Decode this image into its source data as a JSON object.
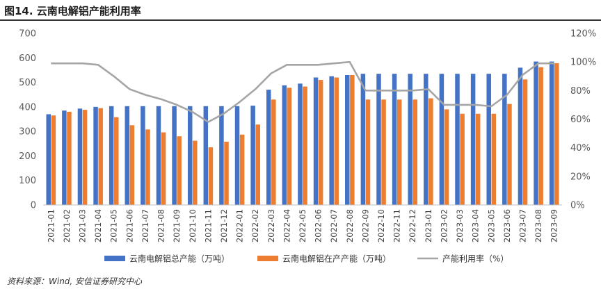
{
  "figure_title": "图14. 云南电解铝产能利用率",
  "source": "资料来源：Wind, 安信证券研究中心",
  "chart_data": {
    "type": "bar",
    "categories": [
      "2021-01",
      "2021-02",
      "2021-03",
      "2021-04",
      "2021-05",
      "2021-06",
      "2021-07",
      "2021-08",
      "2021-09",
      "2021-10",
      "2021-11",
      "2021-12",
      "2022-01",
      "2022-02",
      "2022-03",
      "2022-04",
      "2022-05",
      "2022-06",
      "2022-07",
      "2022-08",
      "2022-09",
      "2022-10",
      "2022-11",
      "2022-12",
      "2023-01",
      "2023-02",
      "2023-03",
      "2023-04",
      "2023-05",
      "2023-06",
      "2023-07",
      "2023-08",
      "2023-09"
    ],
    "left_axis": {
      "ylim": [
        0,
        700
      ],
      "ticks": [
        "0",
        "100",
        "200",
        "300",
        "400",
        "500",
        "600",
        "700"
      ]
    },
    "right_axis": {
      "ylim": [
        0,
        120
      ],
      "ticks": [
        "0%",
        "20%",
        "40%",
        "60%",
        "80%",
        "100%",
        "120%"
      ]
    },
    "series": [
      {
        "name": "云南电解铝总产能（万吨）",
        "type": "bar",
        "axis": "left",
        "color": "#4472C4",
        "values": [
          370,
          385,
          393,
          400,
          403,
          403,
          403,
          403,
          403,
          403,
          403,
          403,
          403,
          405,
          470,
          488,
          495,
          520,
          525,
          530,
          535,
          535,
          535,
          535,
          535,
          535,
          535,
          535,
          535,
          535,
          560,
          585,
          585
        ]
      },
      {
        "name": "云南电解铝在产产能（万吨）",
        "type": "bar",
        "axis": "left",
        "color": "#ED7D31",
        "values": [
          365,
          380,
          388,
          395,
          358,
          325,
          308,
          296,
          280,
          262,
          235,
          258,
          287,
          328,
          430,
          478,
          483,
          510,
          520,
          530,
          430,
          430,
          430,
          430,
          435,
          390,
          372,
          372,
          372,
          412,
          512,
          562,
          578
        ]
      },
      {
        "name": "产能利用率（%）",
        "type": "line",
        "axis": "right",
        "color": "#A5A5A5",
        "values": [
          99,
          99,
          99,
          98,
          90,
          81,
          77,
          74,
          70,
          65,
          58,
          64,
          72,
          81,
          92,
          98,
          98,
          98,
          99,
          100,
          80,
          80,
          80,
          80,
          81,
          70,
          70,
          70,
          69,
          77,
          91,
          99,
          99
        ]
      }
    ]
  }
}
